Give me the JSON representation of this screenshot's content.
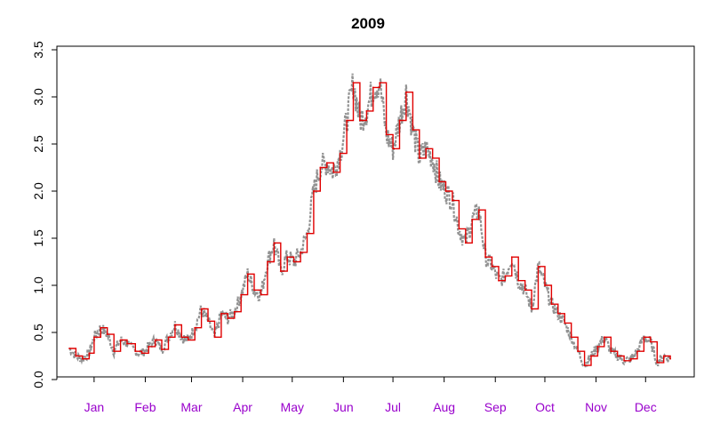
{
  "chart_data": {
    "type": "line",
    "title": "2009",
    "xlabel": "",
    "ylabel": "",
    "ylim": [
      0.0,
      3.5
    ],
    "yticks": [
      "0.0",
      "0.5",
      "1.0",
      "1.5",
      "2.0",
      "2.5",
      "3.0",
      "3.5"
    ],
    "xlim": [
      0,
      365
    ],
    "xticks": [
      {
        "label": "Jan",
        "day": 15
      },
      {
        "label": "Feb",
        "day": 46
      },
      {
        "label": "Mar",
        "day": 74
      },
      {
        "label": "Apr",
        "day": 105
      },
      {
        "label": "May",
        "day": 135
      },
      {
        "label": "Jun",
        "day": 166
      },
      {
        "label": "Jul",
        "day": 196
      },
      {
        "label": "Aug",
        "day": 227
      },
      {
        "label": "Sep",
        "day": 258
      },
      {
        "label": "Oct",
        "day": 288
      },
      {
        "label": "Nov",
        "day": 319
      },
      {
        "label": "Dec",
        "day": 349
      }
    ],
    "grid": false,
    "colors": {
      "envelope": "#7f7f7f",
      "series": "#e00000",
      "month_label": "#9900cc",
      "axis": "#000000"
    },
    "series": [
      {
        "style": "step",
        "x": [
          0,
          4,
          8,
          12,
          15,
          19,
          23,
          27,
          31,
          35,
          40,
          44,
          48,
          52,
          56,
          60,
          64,
          68,
          72,
          76,
          80,
          84,
          88,
          92,
          96,
          100,
          104,
          108,
          112,
          116,
          120,
          124,
          128,
          132,
          136,
          140,
          144,
          148,
          152,
          156,
          160,
          164,
          168,
          172,
          176,
          180,
          184,
          188,
          192,
          196,
          200,
          204,
          208,
          212,
          216,
          220,
          224,
          228,
          232,
          236,
          240,
          244,
          248,
          252,
          256,
          260,
          264,
          268,
          272,
          276,
          280,
          284,
          288,
          292,
          296,
          300,
          304,
          308,
          312,
          316,
          320,
          324,
          328,
          332,
          336,
          340,
          344,
          348,
          352,
          356,
          360,
          364
        ],
        "y": [
          0.33,
          0.25,
          0.22,
          0.28,
          0.45,
          0.55,
          0.48,
          0.3,
          0.42,
          0.38,
          0.3,
          0.28,
          0.35,
          0.42,
          0.32,
          0.45,
          0.58,
          0.45,
          0.42,
          0.55,
          0.75,
          0.62,
          0.45,
          0.7,
          0.65,
          0.72,
          0.9,
          1.12,
          0.95,
          0.9,
          1.25,
          1.45,
          1.15,
          1.3,
          1.25,
          1.35,
          1.55,
          2.0,
          2.25,
          2.3,
          2.2,
          2.4,
          2.75,
          3.15,
          2.75,
          2.85,
          3.1,
          3.15,
          2.6,
          2.45,
          2.75,
          3.05,
          2.65,
          2.35,
          2.45,
          2.35,
          2.1,
          2.0,
          1.9,
          1.6,
          1.45,
          1.7,
          1.8,
          1.3,
          1.2,
          1.05,
          1.1,
          1.3,
          1.05,
          0.95,
          0.75,
          1.2,
          1.0,
          0.8,
          0.7,
          0.6,
          0.45,
          0.3,
          0.15,
          0.25,
          0.35,
          0.45,
          0.3,
          0.25,
          0.2,
          0.22,
          0.3,
          0.45,
          0.4,
          0.18,
          0.25,
          0.22
        ]
      }
    ]
  }
}
